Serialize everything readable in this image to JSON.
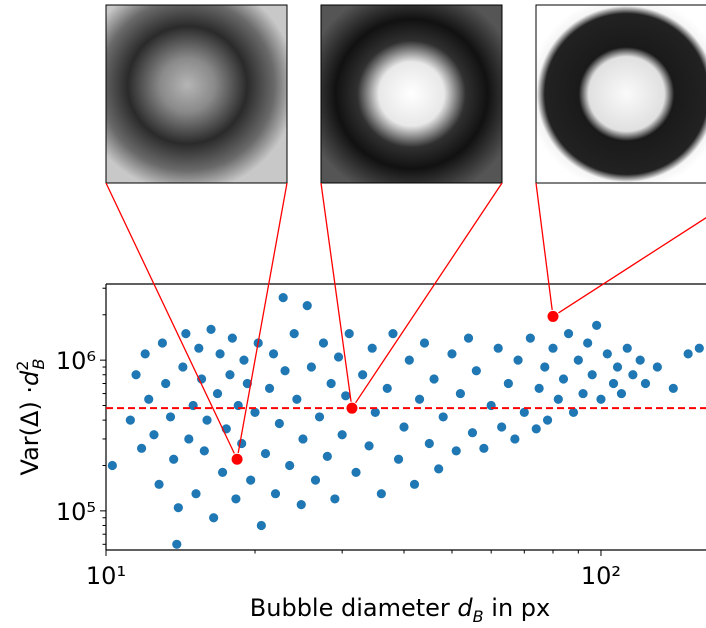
{
  "chart_data": {
    "type": "scatter",
    "x_label": {
      "text": "Bubble diameter ",
      "symbol": "d",
      "sub": "B",
      "after": " in px"
    },
    "y_label": {
      "text": "Var(Δ) ·",
      "symbol": "d",
      "sub": "B",
      "sup": "2"
    },
    "log_x": true,
    "log_y": true,
    "xlim": [
      10,
      163
    ],
    "ylim": [
      55000,
      3200000
    ],
    "xticks": [
      {
        "value": 10,
        "label": "10¹"
      },
      {
        "value": 100,
        "label": "10²"
      }
    ],
    "yticks": [
      {
        "value": 100000,
        "label": "10⁵"
      },
      {
        "value": 1000000,
        "label": "10⁶"
      }
    ],
    "xticks_minor": [
      20,
      30,
      40,
      50,
      60,
      70,
      80,
      90
    ],
    "yticks_minor": [
      60000,
      70000,
      80000,
      90000,
      200000,
      300000,
      400000,
      500000,
      600000,
      700000,
      800000,
      900000,
      2000000,
      3000000
    ],
    "color": "#1f77b4",
    "x": [
      10.3,
      11.2,
      11.5,
      11.8,
      12,
      12.2,
      12.5,
      12.8,
      13,
      13.2,
      13.5,
      13.7,
      13.9,
      14,
      14.3,
      14.5,
      14.7,
      15,
      15.2,
      15.4,
      15.6,
      15.8,
      16,
      16.3,
      16.5,
      16.8,
      17,
      17.2,
      17.5,
      17.8,
      18,
      18.3,
      18.5,
      18.8,
      19,
      19.3,
      19.6,
      20,
      20.3,
      20.6,
      21,
      21.4,
      21.8,
      22,
      22.4,
      22.8,
      23,
      23.5,
      24,
      24.3,
      24.8,
      25,
      25.5,
      26,
      26.5,
      27,
      27.5,
      28,
      28.5,
      29,
      29.5,
      30,
      30.5,
      31,
      32,
      33,
      34,
      34.5,
      35,
      36,
      37,
      38,
      39,
      40,
      41,
      42,
      43,
      44,
      45,
      46,
      47,
      48,
      50,
      51,
      52,
      54,
      55,
      56,
      58,
      60,
      62,
      63,
      65,
      67,
      68,
      70,
      72,
      74,
      75,
      77,
      78,
      80,
      82,
      84,
      86,
      88,
      90,
      92,
      94,
      96,
      98,
      100,
      103,
      106,
      108,
      110,
      113,
      116,
      120,
      123,
      130,
      140,
      150,
      158
    ],
    "values": [
      200000,
      400000,
      800000,
      260000,
      1100000,
      550000,
      320000,
      150000,
      1300000,
      700000,
      420000,
      220000,
      60000,
      105000,
      900000,
      1500000,
      300000,
      500000,
      130000,
      1200000,
      750000,
      250000,
      400000,
      1600000,
      90000,
      600000,
      1100000,
      180000,
      350000,
      800000,
      1400000,
      120000,
      500000,
      280000,
      1000000,
      700000,
      160000,
      450000,
      1300000,
      80000,
      240000,
      650000,
      1100000,
      130000,
      380000,
      2600000,
      850000,
      200000,
      1500000,
      550000,
      110000,
      300000,
      2300000,
      900000,
      160000,
      420000,
      1300000,
      230000,
      700000,
      120000,
      1050000,
      320000,
      580000,
      1500000,
      180000,
      800000,
      270000,
      1200000,
      450000,
      130000,
      650000,
      1500000,
      220000,
      360000,
      1000000,
      150000,
      550000,
      1300000,
      280000,
      750000,
      190000,
      420000,
      1100000,
      250000,
      600000,
      1400000,
      330000,
      850000,
      260000,
      500000,
      1200000,
      360000,
      700000,
      300000,
      1000000,
      450000,
      1400000,
      350000,
      650000,
      900000,
      400000,
      1200000,
      550000,
      750000,
      1500000,
      450000,
      1000000,
      600000,
      1300000,
      800000,
      1700000,
      550000,
      1100000,
      700000,
      900000,
      600000,
      1200000,
      800000,
      1000000,
      700000,
      900000,
      650000,
      1100000,
      1200000
    ],
    "highlight": {
      "x": [
        18.4,
        31.4,
        80
      ],
      "values": [
        220000,
        480000,
        1950000
      ],
      "color": "#ff0000"
    },
    "hline": {
      "value": 480000,
      "color": "#ff0000"
    }
  }
}
